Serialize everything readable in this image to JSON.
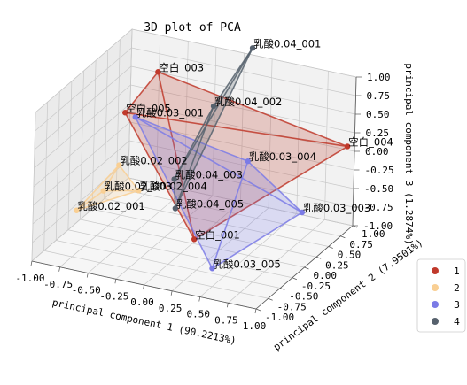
{
  "chart_data": {
    "type": "scatter",
    "projection": "3d",
    "title": "3D plot of PCA",
    "xlabel": "principal component 1 (90.2213%)",
    "ylabel": "principal component 2 (7.9501%)",
    "zlabel": "principal component 3 (1.2874%)",
    "xlim": [
      -1.0,
      1.0
    ],
    "ylim": [
      -1.0,
      1.0
    ],
    "zlim": [
      -1.0,
      1.0
    ],
    "xticks": [
      "-1.00",
      "-0.75",
      "-0.50",
      "-0.25",
      "0.00",
      "0.25",
      "0.50",
      "0.75",
      "1.00"
    ],
    "yticks": [
      "-1.00",
      "-0.75",
      "-0.50",
      "-0.25",
      "0.00",
      "0.25",
      "0.50",
      "0.75",
      "1.00"
    ],
    "zticks": [
      "-1.00",
      "-0.75",
      "-0.50",
      "-0.25",
      "0.00",
      "0.25",
      "0.50",
      "0.75",
      "1.00"
    ],
    "grid": true,
    "legend_position": "right",
    "series": [
      {
        "name": "1",
        "color": "#c0392b",
        "points": [
          {
            "label": "空白_001",
            "x": 0.1,
            "y": -0.2,
            "z": -0.8
          },
          {
            "label": "空白_003",
            "x": -0.55,
            "y": 0.5,
            "z": 0.85
          },
          {
            "label": "空白_004",
            "x": 1.0,
            "y": 0.85,
            "z": 0.15
          },
          {
            "label": "空白_005",
            "x": -0.75,
            "y": 0.3,
            "z": 0.35
          }
        ]
      },
      {
        "name": "2",
        "color": "#f9cf93",
        "points": [
          {
            "label": "乳酸0.02_001",
            "x": -0.95,
            "y": -0.2,
            "z": -0.75
          },
          {
            "label": "乳酸0.02_002",
            "x": -0.75,
            "y": 0.2,
            "z": -0.3
          },
          {
            "label": "乳酸0.02_003",
            "x": -0.8,
            "y": 0.0,
            "z": -0.55
          },
          {
            "label": "乳酸0.02_004",
            "x": -0.55,
            "y": 0.15,
            "z": -0.55
          }
        ]
      },
      {
        "name": "3",
        "color": "#7b7be6",
        "points": [
          {
            "label": "乳酸0.03_001",
            "x": -0.7,
            "y": 0.4,
            "z": 0.25
          },
          {
            "label": "乳酸0.03_003",
            "x": 0.8,
            "y": 0.4,
            "z": -0.55
          },
          {
            "label": "乳酸0.03_004",
            "x": 0.35,
            "y": 0.3,
            "z": 0.05
          },
          {
            "label": "乳酸0.03_005",
            "x": 0.35,
            "y": -0.4,
            "z": -1.0
          }
        ]
      },
      {
        "name": "4",
        "color": "#56616d",
        "points": [
          {
            "label": "乳酸0.04_001",
            "x": 0.2,
            "y": 0.7,
            "z": 1.3
          },
          {
            "label": "乳酸0.04_002",
            "x": -0.05,
            "y": 0.5,
            "z": 0.55
          },
          {
            "label": "乳酸0.04_003",
            "x": -0.3,
            "y": 0.3,
            "z": -0.4
          },
          {
            "label": "乳酸0.04_005",
            "x": -0.2,
            "y": 0.1,
            "z": -0.65
          }
        ]
      }
    ]
  }
}
